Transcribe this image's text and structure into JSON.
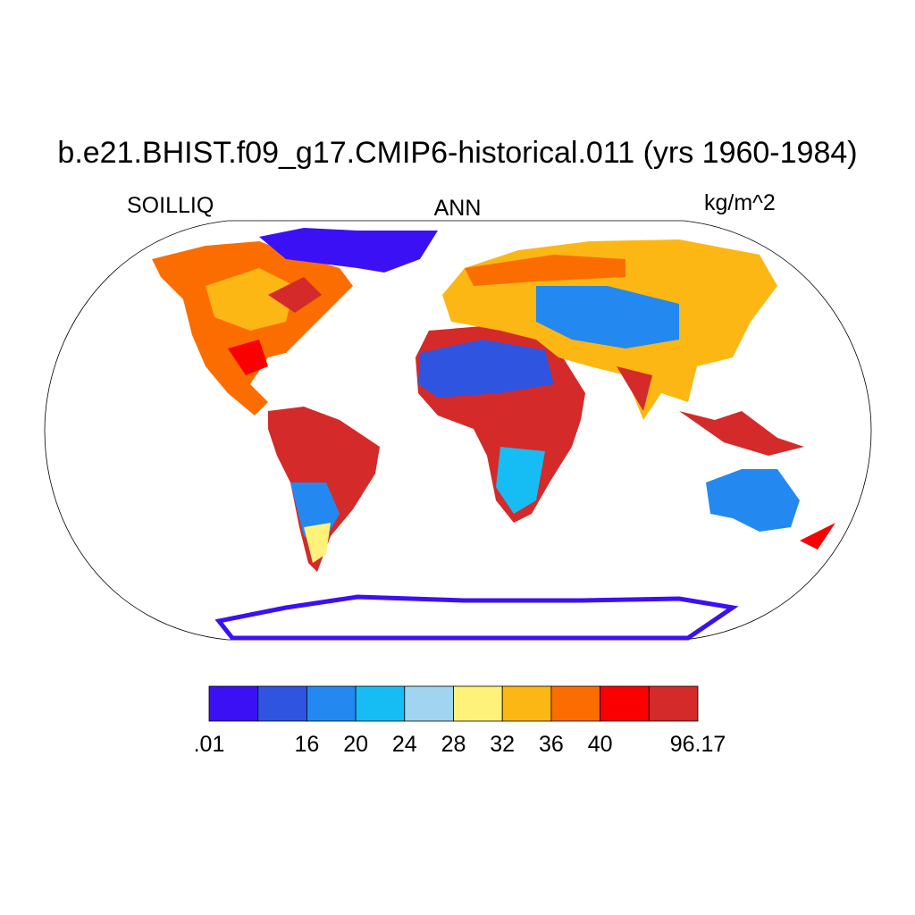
{
  "title": "b.e21.BHIST.f09_g17.CMIP6-historical.011 (yrs 1960-1984)",
  "left_label": "SOILLIQ",
  "center_label": "ANN",
  "right_label": "kg/m^2",
  "colorbar": {
    "colors": [
      "#3c10f5",
      "#2f55e0",
      "#2389f0",
      "#16bdf5",
      "#a0d4f0",
      "#fff27a",
      "#fcb714",
      "#fc6d00",
      "#fa0000",
      "#d42a2a"
    ],
    "boundary_labels": [
      {
        "value": 0.01,
        "label": ".01"
      },
      null,
      16,
      20,
      24,
      28,
      32,
      36,
      40,
      null,
      96.17
    ]
  }
}
